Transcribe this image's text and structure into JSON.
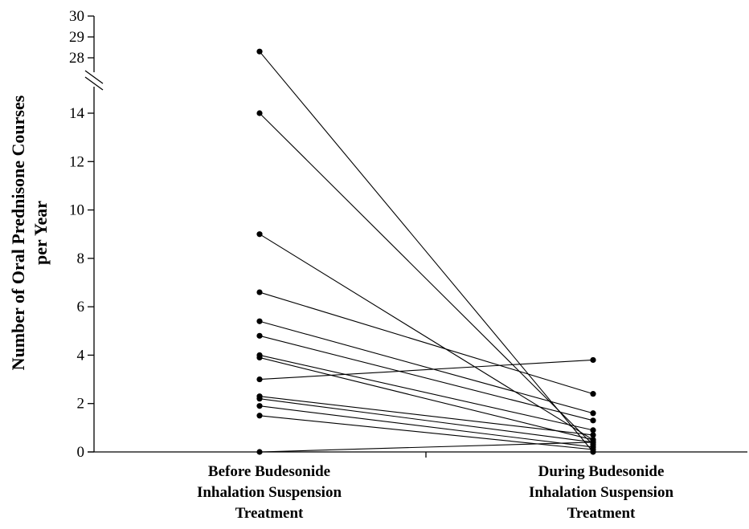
{
  "chart_data": {
    "type": "line",
    "title": "",
    "ylabel_lines": [
      "Number of Oral Prednisone Courses",
      "per Year"
    ],
    "categories": [
      [
        "Before Budesonide",
        "Inhalation Suspension",
        "Treatment"
      ],
      [
        "During Budesonide",
        "Inhalation Suspension",
        "Treatment"
      ]
    ],
    "y_ticks_lower": [
      "0",
      "2",
      "4",
      "6",
      "8",
      "10",
      "12",
      "14"
    ],
    "y_ticks_upper": [
      "28",
      "29",
      "30"
    ],
    "ylim_lower": [
      0,
      14.6
    ],
    "ylim_upper": [
      27.6,
      30
    ],
    "axis_break": true,
    "grid": false,
    "legend": "none",
    "series": [
      {
        "values": [
          28.3,
          0
        ]
      },
      {
        "values": [
          14.0,
          0.3
        ]
      },
      {
        "values": [
          9.0,
          0.5
        ]
      },
      {
        "values": [
          6.6,
          2.4
        ]
      },
      {
        "values": [
          5.4,
          1.6
        ]
      },
      {
        "values": [
          4.8,
          1.3
        ]
      },
      {
        "values": [
          4.0,
          0.9
        ]
      },
      {
        "values": [
          3.9,
          0.5
        ]
      },
      {
        "values": [
          3.0,
          3.8
        ]
      },
      {
        "values": [
          2.3,
          0.7
        ]
      },
      {
        "values": [
          2.2,
          0.4
        ]
      },
      {
        "values": [
          1.9,
          0.2
        ]
      },
      {
        "values": [
          1.5,
          0.1
        ]
      },
      {
        "values": [
          0,
          0.4
        ]
      }
    ]
  }
}
